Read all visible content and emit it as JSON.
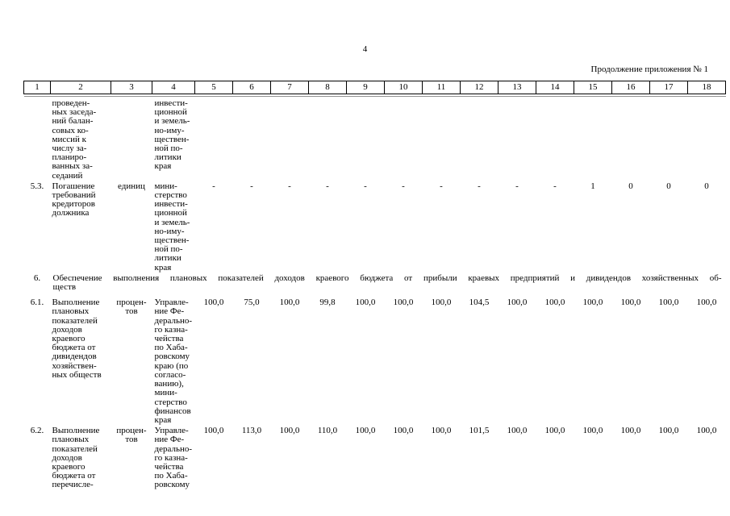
{
  "page": {
    "number": "4",
    "continuation_note": "Продолжение приложения № 1"
  },
  "table": {
    "column_numbers": [
      "1",
      "2",
      "3",
      "4",
      "5",
      "6",
      "7",
      "8",
      "9",
      "10",
      "11",
      "12",
      "13",
      "14",
      "15",
      "16",
      "17",
      "18"
    ],
    "rows": [
      {
        "id": "",
        "indicator": "проведен-\nных заседа-\nний балан-\nсовых ко-\nмиссий к\nчислу за-\nпланиро-\nванных за-\nседаний",
        "unit": "",
        "executor": "инвести-\nционной\nи земель-\nно-иму-\nществен-\nной по-\nлитики\nкрая",
        "values": [
          "",
          "",
          "",
          "",
          "",
          "",
          "",
          "",
          "",
          "",
          "",
          "",
          "",
          ""
        ]
      },
      {
        "id": "5.3.",
        "indicator": "Погашение\nтребований\nкредиторов\nдолжника",
        "unit": "единиц",
        "executor": "мини-\nстерство\nинвести-\nционной\nи земель-\nно-иму-\nществен-\nной по-\nлитики\nкрая",
        "values": [
          "-",
          "-",
          "-",
          "-",
          "-",
          "-",
          "-",
          "-",
          "-",
          "-",
          "1",
          "0",
          "0",
          "0"
        ]
      },
      {
        "id": "6.",
        "section_line1": "Обеспечение выполнения плановых показателей доходов краевого бюджета от прибыли краевых предприятий и дивидендов хозяйственных об-",
        "section_line2": "ществ"
      },
      {
        "id": "6.1.",
        "indicator": "Выполнение\nплановых\nпоказателей\nдоходов\nкраевого\nбюджета от\nдивидендов\nхозяйствен-\nных обществ",
        "unit": "процен-\nтов",
        "executor": "Управле-\nние Фе-\nдерально-\nго казна-\nчейства\nпо Хаба-\nровскому\nкраю (по\nсогласо-\nванию),\nмини-\nстерство\nфинансов\nкрая",
        "values": [
          "100,0",
          "75,0",
          "100,0",
          "99,8",
          "100,0",
          "100,0",
          "100,0",
          "104,5",
          "100,0",
          "100,0",
          "100,0",
          "100,0",
          "100,0",
          "100,0"
        ]
      },
      {
        "id": "6.2.",
        "indicator": "Выполнение\nплановых\nпоказателей\nдоходов\nкраевого\nбюджета от\nперечисле-",
        "unit": "процен-\nтов",
        "executor": "Управле-\nние Фе-\nдерально-\nго казна-\nчейства\nпо Хаба-\nровскому",
        "values": [
          "100,0",
          "113,0",
          "100,0",
          "110,0",
          "100,0",
          "100,0",
          "100,0",
          "101,5",
          "100,0",
          "100,0",
          "100,0",
          "100,0",
          "100,0",
          "100,0"
        ]
      }
    ]
  }
}
